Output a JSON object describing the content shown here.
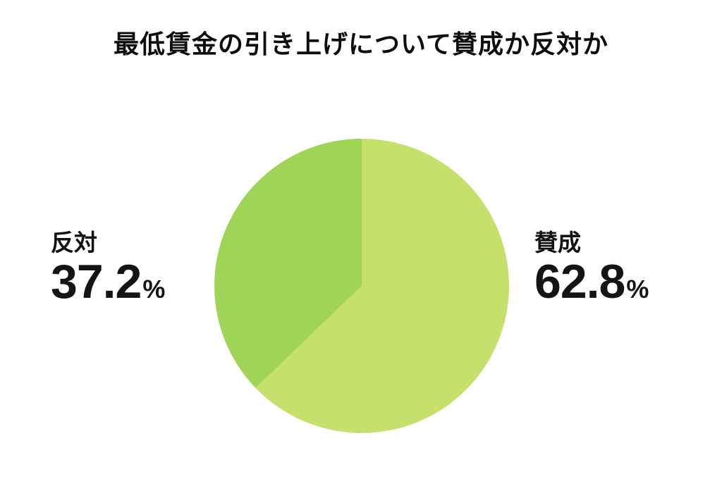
{
  "title": "最低賃金の引き上げについて賛成か反対か",
  "chart_data": {
    "type": "pie",
    "title": "最低賃金の引き上げについて賛成か反対か",
    "start_angle_deg": 0,
    "direction": "clockwise",
    "legend_position": "side-labels",
    "background_color": "#ffffff",
    "slices": [
      {
        "id": "agree",
        "label": "賛成",
        "value": 62.8,
        "unit": "%",
        "color": "#C6E16B"
      },
      {
        "id": "oppose",
        "label": "反対",
        "value": 37.2,
        "unit": "%",
        "color": "#9FD457"
      }
    ]
  }
}
